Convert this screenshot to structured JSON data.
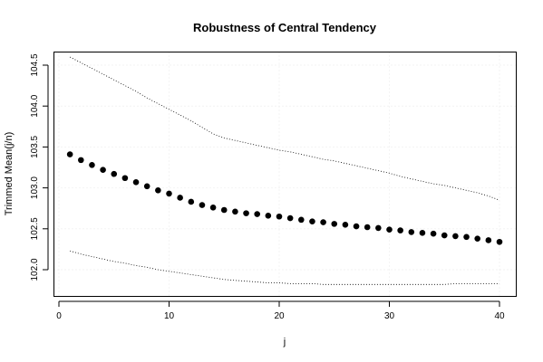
{
  "chart_data": {
    "type": "scatter",
    "title": "Robustness of Central Tendency",
    "xlabel": "j",
    "ylabel": "Trimmed Mean(j/n)",
    "xlim": [
      0,
      40.5
    ],
    "ylim": [
      101.8,
      104.65
    ],
    "xticks": [
      0,
      10,
      20,
      30,
      40
    ],
    "yticks": [
      102.0,
      102.5,
      103.0,
      103.5,
      104.0,
      104.5
    ],
    "ytick_labels": [
      "102.0",
      "102.5",
      "103.0",
      "103.5",
      "104.0",
      "104.5"
    ],
    "grid": true,
    "x": [
      1,
      2,
      3,
      4,
      5,
      6,
      7,
      8,
      9,
      10,
      11,
      12,
      13,
      14,
      15,
      16,
      17,
      18,
      19,
      20,
      21,
      22,
      23,
      24,
      25,
      26,
      27,
      28,
      29,
      30,
      31,
      32,
      33,
      34,
      35,
      36,
      37,
      38,
      39,
      40
    ],
    "series": [
      {
        "values": [
          103.41,
          103.34,
          103.28,
          103.22,
          103.17,
          103.12,
          103.07,
          103.02,
          102.97,
          102.93,
          102.88,
          102.83,
          102.79,
          102.76,
          102.73,
          102.71,
          102.69,
          102.68,
          102.66,
          102.65,
          102.63,
          102.61,
          102.59,
          102.58,
          102.56,
          102.55,
          102.53,
          102.52,
          102.51,
          102.49,
          102.48,
          102.46,
          102.45,
          102.44,
          102.42,
          102.41,
          102.4,
          102.38,
          102.36,
          102.34
        ]
      },
      {
        "style": "dotted",
        "values": [
          104.6,
          104.53,
          104.46,
          104.39,
          104.32,
          104.25,
          104.18,
          104.1,
          104.03,
          103.96,
          103.89,
          103.82,
          103.74,
          103.66,
          103.61,
          103.58,
          103.55,
          103.52,
          103.49,
          103.46,
          103.44,
          103.41,
          103.38,
          103.35,
          103.33,
          103.3,
          103.27,
          103.24,
          103.21,
          103.18,
          103.14,
          103.11,
          103.08,
          103.05,
          103.03,
          103.0,
          102.97,
          102.94,
          102.9,
          102.85
        ]
      },
      {
        "style": "dotted",
        "values": [
          102.23,
          102.19,
          102.16,
          102.13,
          102.1,
          102.08,
          102.05,
          102.03,
          102.0,
          101.98,
          101.96,
          101.94,
          101.92,
          101.9,
          101.88,
          101.87,
          101.86,
          101.85,
          101.84,
          101.84,
          101.83,
          101.83,
          101.83,
          101.82,
          101.82,
          101.82,
          101.82,
          101.82,
          101.82,
          101.82,
          101.82,
          101.82,
          101.82,
          101.82,
          101.82,
          101.83,
          101.83,
          101.83,
          101.83,
          101.83
        ]
      }
    ],
    "colors": {
      "points": "#000000",
      "lines": "#000000",
      "grid": "#e8e8e8"
    }
  }
}
